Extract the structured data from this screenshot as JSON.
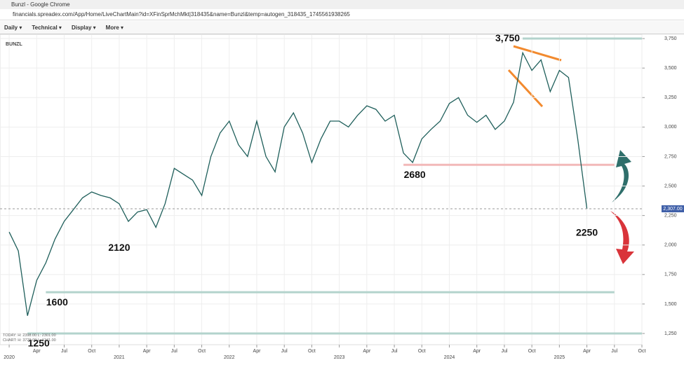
{
  "window": {
    "title": "Bunzl - Google Chrome",
    "url": "financials.spreadex.com/App/Home/LiveChartMain?id=XFinSprMchMkt|318435&name=Bunzl&temp=autogen_318435_1745561938265"
  },
  "toolbar": {
    "menus": [
      "Daily",
      "Technical",
      "Display",
      "More"
    ]
  },
  "info": {
    "today_label": "TODAY:",
    "today": "H: 2398.00  L: 2301.00",
    "chart_label": "CHART:",
    "chart": "H: 3729.00  L: 1241.00"
  },
  "chart_data": {
    "type": "line",
    "title": "BUNZL",
    "color": "#1f5f5b",
    "grid": true,
    "x": [
      "2020-01",
      "2020-02",
      "2020-03",
      "2020-04",
      "2020-05",
      "2020-06",
      "2020-07",
      "2020-08",
      "2020-09",
      "2020-10",
      "2020-11",
      "2020-12",
      "2021-01",
      "2021-02",
      "2021-03",
      "2021-04",
      "2021-05",
      "2021-06",
      "2021-07",
      "2021-08",
      "2021-09",
      "2021-10",
      "2021-11",
      "2021-12",
      "2022-01",
      "2022-02",
      "2022-03",
      "2022-04",
      "2022-05",
      "2022-06",
      "2022-07",
      "2022-08",
      "2022-09",
      "2022-10",
      "2022-11",
      "2022-12",
      "2023-01",
      "2023-02",
      "2023-03",
      "2023-04",
      "2023-05",
      "2023-06",
      "2023-07",
      "2023-08",
      "2023-09",
      "2023-10",
      "2023-11",
      "2023-12",
      "2024-01",
      "2024-02",
      "2024-03",
      "2024-04",
      "2024-05",
      "2024-06",
      "2024-07",
      "2024-08",
      "2024-09",
      "2024-10",
      "2024-11",
      "2024-12",
      "2025-01",
      "2025-02",
      "2025-03",
      "2025-04"
    ],
    "values": [
      2110,
      1950,
      1400,
      1700,
      1850,
      2050,
      2200,
      2300,
      2400,
      2450,
      2420,
      2400,
      2350,
      2200,
      2280,
      2300,
      2150,
      2350,
      2650,
      2600,
      2550,
      2420,
      2750,
      2950,
      3050,
      2850,
      2750,
      3050,
      2750,
      2620,
      3000,
      3120,
      2950,
      2700,
      2900,
      3050,
      3050,
      3000,
      3100,
      3180,
      3150,
      3050,
      3100,
      2780,
      2700,
      2900,
      2980,
      3050,
      3200,
      3250,
      3100,
      3040,
      3100,
      2980,
      3050,
      3210,
      3630,
      3480,
      3570,
      3300,
      3480,
      3420,
      2900,
      2307
    ],
    "xlim": [
      "2019-12",
      "2025-10"
    ],
    "xticks": [
      {
        "value": "2020-01",
        "label": "2020"
      },
      {
        "value": "2020-04",
        "label": "Apr"
      },
      {
        "value": "2020-07",
        "label": "Jul"
      },
      {
        "value": "2020-10",
        "label": "Oct"
      },
      {
        "value": "2021-01",
        "label": "2021"
      },
      {
        "value": "2021-04",
        "label": "Apr"
      },
      {
        "value": "2021-07",
        "label": "Jul"
      },
      {
        "value": "2021-10",
        "label": "Oct"
      },
      {
        "value": "2022-01",
        "label": "2022"
      },
      {
        "value": "2022-04",
        "label": "Apr"
      },
      {
        "value": "2022-07",
        "label": "Jul"
      },
      {
        "value": "2022-10",
        "label": "Oct"
      },
      {
        "value": "2023-01",
        "label": "2023"
      },
      {
        "value": "2023-04",
        "label": "Apr"
      },
      {
        "value": "2023-07",
        "label": "Jul"
      },
      {
        "value": "2023-10",
        "label": "Oct"
      },
      {
        "value": "2024-01",
        "label": "2024"
      },
      {
        "value": "2024-04",
        "label": "Apr"
      },
      {
        "value": "2024-07",
        "label": "Jul"
      },
      {
        "value": "2024-10",
        "label": "Oct"
      },
      {
        "value": "2025-01",
        "label": "2025"
      },
      {
        "value": "2025-04",
        "label": "Apr"
      },
      {
        "value": "2025-07",
        "label": "Jul"
      },
      {
        "value": "2025-10",
        "label": "Oct"
      }
    ],
    "ylim": [
      1155,
      3786
    ],
    "yticks": [
      {
        "value": 1250,
        "label": "1,250"
      },
      {
        "value": 1500,
        "label": "1,500"
      },
      {
        "value": 1750,
        "label": "1,750"
      },
      {
        "value": 2000,
        "label": "2,000"
      },
      {
        "value": 2250,
        "label": "2,250"
      },
      {
        "value": 2500,
        "label": "2,500"
      },
      {
        "value": 2750,
        "label": "2,750"
      },
      {
        "value": 3000,
        "label": "3,000"
      },
      {
        "value": 3250,
        "label": "3,250"
      },
      {
        "value": 3500,
        "label": "3,500"
      },
      {
        "value": 3750,
        "label": "3,750"
      }
    ],
    "last_price": {
      "value": 2307,
      "label": "2,307.00"
    },
    "levels": [
      {
        "text": "3,750",
        "value": 3750,
        "from": "2024-09",
        "to": "2025-10",
        "color": "#b3d3cc"
      },
      {
        "text": "2680",
        "value": 2680,
        "from": "2023-08",
        "to": "2025-07",
        "color": "#f2b8b8"
      },
      {
        "text": "1600",
        "value": 1600,
        "from": "2020-05",
        "to": "2025-07",
        "color": "#b3d3cc"
      },
      {
        "text": "1250",
        "value": 1250,
        "from": "2020-03",
        "to": "2025-10",
        "color": "#b3d3cc"
      }
    ],
    "annotations": [
      {
        "text": "2120",
        "x": "2021-01",
        "value": 2120
      },
      {
        "text": "2250",
        "x": "2025-04",
        "value": 2250
      }
    ]
  }
}
